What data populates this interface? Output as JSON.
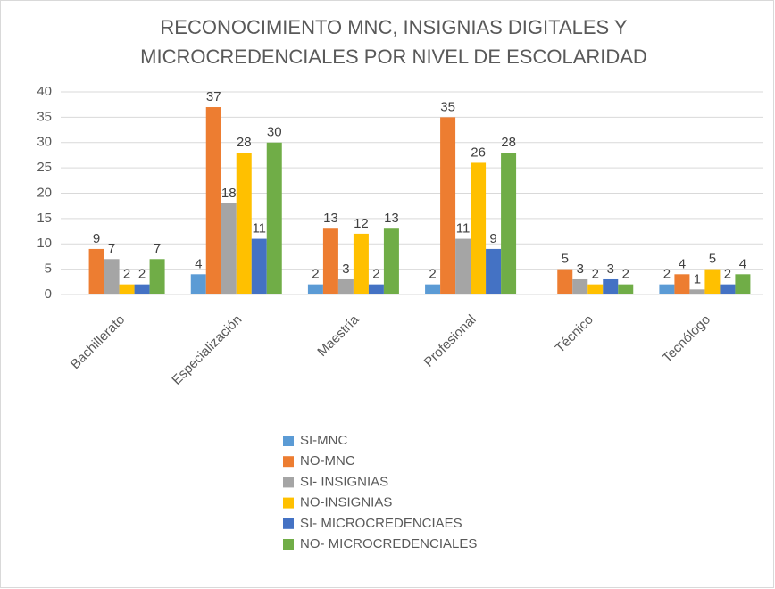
{
  "chart_data": {
    "type": "bar",
    "title": "RECONOCIMIENTO MNC, INSIGNIAS DIGITALES Y MICROCREDENCIALES POR NIVEL DE ESCOLARIDAD",
    "categories": [
      "Bachillerato",
      "Especialización",
      "Maestría",
      "Profesional",
      "Técnico",
      "Tecnólogo"
    ],
    "series": [
      {
        "name": "SI-MNC",
        "color": "#5b9bd5",
        "values": [
          null,
          4,
          2,
          2,
          null,
          2
        ]
      },
      {
        "name": "NO-MNC",
        "color": "#ed7d31",
        "values": [
          9,
          37,
          13,
          35,
          5,
          4
        ]
      },
      {
        "name": "SI- INSIGNIAS",
        "color": "#a5a5a5",
        "values": [
          7,
          18,
          3,
          11,
          3,
          1
        ]
      },
      {
        "name": "NO-INSIGNIAS",
        "color": "#ffc000",
        "values": [
          2,
          28,
          12,
          26,
          2,
          5
        ]
      },
      {
        "name": "SI- MICROCREDENCIAES",
        "color": "#4472c4",
        "values": [
          2,
          11,
          2,
          9,
          3,
          2
        ]
      },
      {
        "name": "NO- MICROCREDENCIALES",
        "color": "#70ad47",
        "values": [
          7,
          30,
          13,
          28,
          2,
          4
        ]
      }
    ],
    "ylim": [
      0,
      40
    ],
    "yticks": [
      0,
      5,
      10,
      15,
      20,
      25,
      30,
      35,
      40
    ],
    "grid": true,
    "legend": "bottom"
  }
}
